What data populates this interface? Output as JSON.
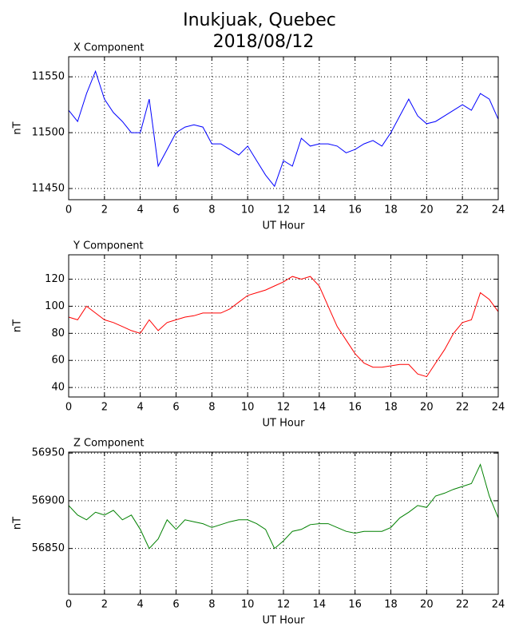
{
  "title": "Inukjuak, Quebec",
  "subtitle": "2018/08/12",
  "chart_data": [
    {
      "type": "line",
      "title": "X Component",
      "xlabel": "UT Hour",
      "ylabel": "nT",
      "x": [
        0,
        0.5,
        1,
        1.5,
        2,
        2.5,
        3,
        3.5,
        4,
        4.5,
        5,
        5.5,
        6,
        6.5,
        7,
        7.5,
        8,
        8.5,
        9,
        9.5,
        10,
        10.5,
        11,
        11.5,
        12,
        12.5,
        13,
        13.5,
        14,
        14.5,
        15,
        15.5,
        16,
        16.5,
        17,
        17.5,
        18,
        18.5,
        19,
        19.5,
        20,
        20.5,
        21,
        21.5,
        22,
        22.5,
        23,
        23.5,
        24
      ],
      "series": [
        {
          "name": "X",
          "color": "#0000ff",
          "values": [
            11520,
            11510,
            11535,
            11555,
            11530,
            11518,
            11510,
            11500,
            11500,
            11530,
            11470,
            11485,
            11500,
            11505,
            11507,
            11505,
            11490,
            11490,
            11485,
            11480,
            11488,
            11475,
            11462,
            11452,
            11475,
            11470,
            11495,
            11488,
            11490,
            11490,
            11488,
            11482,
            11485,
            11490,
            11493,
            11488,
            11500,
            11515,
            11530,
            11515,
            11508,
            11510,
            11515,
            11520,
            11525,
            11520,
            11535,
            11530,
            11512
          ]
        }
      ],
      "xlim": [
        0,
        24
      ],
      "xticks": [
        0,
        2,
        4,
        6,
        8,
        10,
        12,
        14,
        16,
        18,
        20,
        22,
        24
      ],
      "ylim": [
        11440,
        11568
      ],
      "yticks": [
        11450,
        11500,
        11550
      ],
      "grid": true
    },
    {
      "type": "line",
      "title": "Y Component",
      "xlabel": "UT Hour",
      "ylabel": "nT",
      "x": [
        0,
        0.5,
        1,
        1.5,
        2,
        2.5,
        3,
        3.5,
        4,
        4.5,
        5,
        5.5,
        6,
        6.5,
        7,
        7.5,
        8,
        8.5,
        9,
        9.5,
        10,
        10.5,
        11,
        11.5,
        12,
        12.5,
        13,
        13.5,
        14,
        14.5,
        15,
        15.5,
        16,
        16.5,
        17,
        17.5,
        18,
        18.5,
        19,
        19.5,
        20,
        20.5,
        21,
        21.5,
        22,
        22.5,
        23,
        23.5,
        24
      ],
      "series": [
        {
          "name": "Y",
          "color": "#ff0000",
          "values": [
            92,
            90,
            100,
            95,
            90,
            88,
            85,
            82,
            80,
            90,
            82,
            88,
            90,
            92,
            93,
            95,
            95,
            95,
            98,
            103,
            108,
            110,
            112,
            115,
            118,
            122,
            120,
            122,
            115,
            100,
            85,
            75,
            65,
            58,
            55,
            55,
            56,
            57,
            57,
            50,
            48,
            58,
            68,
            80,
            88,
            90,
            110,
            105,
            96
          ]
        }
      ],
      "xlim": [
        0,
        24
      ],
      "xticks": [
        0,
        2,
        4,
        6,
        8,
        10,
        12,
        14,
        16,
        18,
        20,
        22,
        24
      ],
      "ylim": [
        33,
        138
      ],
      "yticks": [
        40,
        60,
        80,
        100,
        120
      ],
      "grid": true
    },
    {
      "type": "line",
      "title": "Z Component",
      "xlabel": "UT Hour",
      "ylabel": "nT",
      "x": [
        0,
        0.5,
        1,
        1.5,
        2,
        2.5,
        3,
        3.5,
        4,
        4.5,
        5,
        5.5,
        6,
        6.5,
        7,
        7.5,
        8,
        8.5,
        9,
        9.5,
        10,
        10.5,
        11,
        11.5,
        12,
        12.5,
        13,
        13.5,
        14,
        14.5,
        15,
        15.5,
        16,
        16.5,
        17,
        17.5,
        18,
        18.5,
        19,
        19.5,
        20,
        20.5,
        21,
        21.5,
        22,
        22.5,
        23,
        23.5,
        24
      ],
      "series": [
        {
          "name": "Z",
          "color": "#008000",
          "values": [
            56895,
            56885,
            56880,
            56888,
            56885,
            56890,
            56880,
            56885,
            56870,
            56850,
            56860,
            56880,
            56870,
            56880,
            56878,
            56876,
            56872,
            56875,
            56878,
            56880,
            56880,
            56876,
            56870,
            56850,
            56858,
            56868,
            56870,
            56875,
            56876,
            56876,
            56872,
            56868,
            56866,
            56868,
            56868,
            56868,
            56872,
            56882,
            56888,
            56895,
            56893,
            56905,
            56908,
            56912,
            56915,
            56918,
            56938,
            56905,
            56882
          ]
        }
      ],
      "xlim": [
        0,
        24
      ],
      "xticks": [
        0,
        2,
        4,
        6,
        8,
        10,
        12,
        14,
        16,
        18,
        20,
        22,
        24
      ],
      "ylim": [
        56802,
        56951
      ],
      "yticks": [
        56850,
        56900,
        56950
      ],
      "grid": true
    }
  ]
}
